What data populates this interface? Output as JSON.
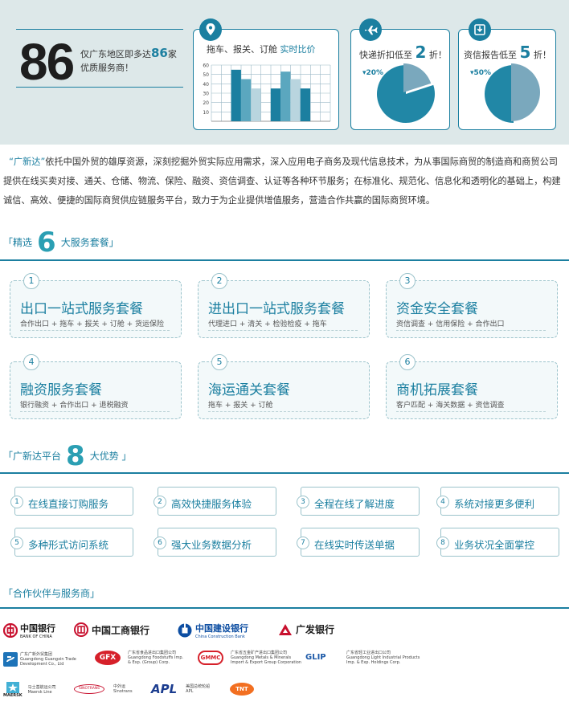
{
  "banner": {
    "big_number": "86",
    "text_prefix": "仅广东地区即多达",
    "text_number": "86",
    "text_suffix": "家优质服务商！",
    "card1": {
      "title_prefix": "拖车、报关、订舱",
      "title_highlight": "实时比价",
      "icon": "location-pin-icon",
      "chart_data": {
        "type": "bar",
        "y_ticks": [
          "60",
          "50",
          "40",
          "30",
          "20",
          "10"
        ],
        "ylim": [
          0,
          60
        ],
        "grid": true,
        "series_values": [
          [
            55,
            45,
            35
          ],
          [
            35,
            53,
            45,
            35
          ]
        ],
        "colors": [
          "#1b7fa0",
          "#5ba7bf",
          "#b9d5df"
        ]
      }
    },
    "card2": {
      "title_prefix": "快递折扣低至",
      "title_number": "2",
      "title_suffix": "折！",
      "pie_label": "20%",
      "pie_value": 20,
      "icon": "airplane-icon"
    },
    "card3": {
      "title_prefix": "资信报告低至",
      "title_number": "5",
      "title_suffix": "折！",
      "pie_label": "50%",
      "pie_value": 50,
      "icon": "download-icon"
    }
  },
  "intro": {
    "brand": "“广新达”",
    "text": "依托中国外贸的雄厚资源，深刻挖掘外贸实际应用需求，深入应用电子商务及现代信息技术，为从事国际商贸的制造商和商贸公司提供在线买卖对接、通关、仓储、物流、保险、融资、资信调查、认证等各种环节服务；在标准化、规范化、信息化和透明化的基础上，构建诚信、高效、便捷的国际商贸供应链服务平台，致力于为企业提供增值服务，营造合作共赢的国际商贸环境。"
  },
  "packages_section": {
    "prefix": "「精选",
    "number": "6",
    "suffix": "大服务套餐」"
  },
  "packages": [
    {
      "num": "1",
      "title": "出口一站式服务套餐",
      "sub": "合作出口 + 拖车 + 报关 + 订舱 + 货运保险"
    },
    {
      "num": "2",
      "title": "进出口一站式服务套餐",
      "sub": "代理进口 + 清关 + 检验检疫 + 拖车"
    },
    {
      "num": "3",
      "title": "资金安全套餐",
      "sub": "资信调查 + 信用保险 + 合作出口"
    },
    {
      "num": "4",
      "title": "融资服务套餐",
      "sub": "银行融资 + 合作出口 + 退税融资"
    },
    {
      "num": "5",
      "title": "海运通关套餐",
      "sub": "拖车 + 报关 + 订舱"
    },
    {
      "num": "6",
      "title": "商机拓展套餐",
      "sub": "客户匹配 + 海关数据 + 资信调查"
    }
  ],
  "advantages_section": {
    "prefix": "「广新达平台",
    "number": "8",
    "suffix": "大优势 」"
  },
  "advantages": [
    {
      "num": "1",
      "label": "在线直接订购服务"
    },
    {
      "num": "2",
      "label": "高效快捷服务体验"
    },
    {
      "num": "3",
      "label": "全程在线了解进度"
    },
    {
      "num": "4",
      "label": "系统对接更多便利"
    },
    {
      "num": "5",
      "label": "多种形式访问系统"
    },
    {
      "num": "6",
      "label": "强大业务数据分析"
    },
    {
      "num": "7",
      "label": "在线实时传送单据"
    },
    {
      "num": "8",
      "label": "业务状况全面掌控"
    }
  ],
  "partners_section": {
    "title": "「合作伙伴与服务商」"
  },
  "partners": {
    "boc": {
      "cn": "中国银行",
      "en": "BANK OF CHINA"
    },
    "icbc": {
      "cn": "中国工商银行"
    },
    "ccb": {
      "cn": "中国建设银行",
      "en": "China Construction Bank"
    },
    "cgb": {
      "cn": "广发银行"
    },
    "gz_dev": {
      "cn": "广东广新外贸集团",
      "en": "Guangdong Guangxin Trade Development Co., Ltd"
    },
    "foodstuffs": {
      "logo": "GFX",
      "cn": "广东省食品进出口集团公司",
      "en": "Guangdong Foodstuffs Imp. & Exp. (Group) Corp."
    },
    "metals": {
      "logo": "GMMC",
      "cn": "广东省五金矿产进出口集团公司",
      "en": "Guangdong Metals & Minerals Import & Export Group Corporation"
    },
    "light": {
      "logo": "GLIP",
      "cn": "广东省轻工业进出口公司",
      "en": "Guangdong Light Industrial Products Imp. & Exp. Holdings Corp."
    },
    "maersk": {
      "logo": "MAERSK",
      "cn": "马士基航运公司",
      "en": "Maersk Line"
    },
    "sinotrans": {
      "logo": "SINOTRANS",
      "cn": "中外运",
      "en": "Sinotrans"
    },
    "apl": {
      "logo": "APL",
      "cn": "美国总统轮船",
      "en": "APL"
    },
    "tnt": {
      "logo": "TNT"
    }
  }
}
